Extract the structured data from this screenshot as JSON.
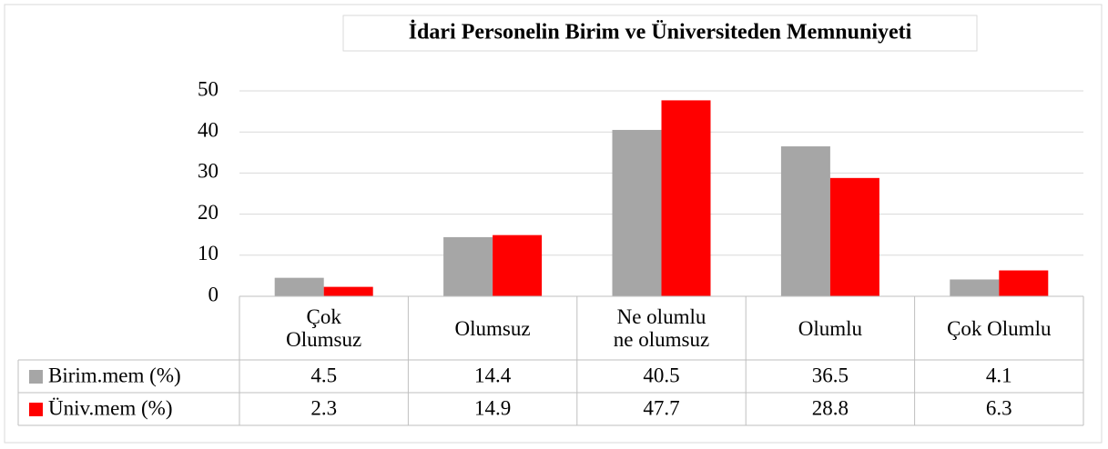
{
  "chart_data": {
    "type": "bar",
    "title": "İdari Personelin Birim ve Üniversiteden Memnuniyeti",
    "categories": [
      "Çok\nOlumsuz",
      "Olumsuz",
      "Ne olumlu\nne olumsuz",
      "Olumlu",
      "Çok Olumlu"
    ],
    "series": [
      {
        "name": "Birim.mem (%)",
        "color": "#a6a6a6",
        "values": [
          4.5,
          14.4,
          40.5,
          36.5,
          4.1
        ]
      },
      {
        "name": "Üniv.mem (%)",
        "color": "#ff0000",
        "values": [
          2.3,
          14.9,
          47.7,
          28.8,
          6.3
        ]
      }
    ],
    "ylim": [
      0,
      50
    ],
    "yticks": [
      0,
      10,
      20,
      30,
      40,
      50
    ],
    "grid": true
  }
}
